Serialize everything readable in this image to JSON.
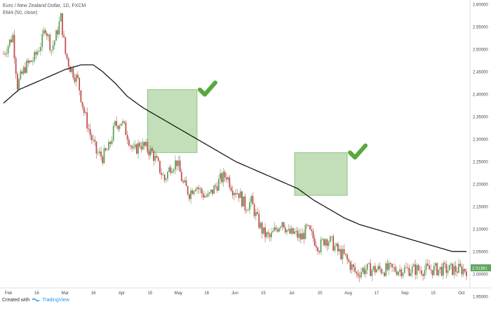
{
  "header": {
    "symbol_line": "Euro / New Zealand Dollar, 1D, FXCM",
    "indicator_line": "EMA (50, close)"
  },
  "footer": {
    "created_with": "Created with",
    "brand": "TradingView"
  },
  "colors": {
    "up_candle": "#5fa35f",
    "down_candle": "#c0504d",
    "ema_line": "#1a1a1a",
    "highlight_box": "#8fc47f",
    "checkmark": "#5aa83c",
    "price_label": "#5fa35f",
    "axis_text": "#444444",
    "grid": "#f2f2f2"
  },
  "icons": [
    "checkmark-icon",
    "tradingview-logo-icon"
  ],
  "chart_data": {
    "type": "candlestick",
    "title": "Euro / New Zealand Dollar, 1D, FXCM",
    "ylim": [
      1.98,
      2.6
    ],
    "y_ticks": [
      "2.60000",
      "2.55000",
      "2.50000",
      "2.45000",
      "2.40000",
      "2.35000",
      "2.30000",
      "2.25000",
      "2.20000",
      "2.15000",
      "2.10000",
      "2.05000",
      "2.00000",
      "1.95000"
    ],
    "x_labels": [
      "Feb",
      "16",
      "Mar",
      "16",
      "Apr",
      "15",
      "May",
      "16",
      "Jun",
      "15",
      "Jul",
      "20",
      "Aug",
      "17",
      "Sep",
      "15",
      "Oct"
    ],
    "last_price_label": "2.01381",
    "series": [
      {
        "name": "EMA (50, close)",
        "type": "line",
        "x": [
          0,
          10,
          20,
          30,
          40,
          50,
          58,
          64,
          72,
          80,
          90,
          100,
          110,
          120,
          130,
          140,
          150,
          160,
          170,
          180,
          190,
          200,
          210,
          220,
          230,
          240,
          250,
          260,
          270,
          280,
          290
        ],
        "values": [
          2.38,
          2.41,
          2.425,
          2.44,
          2.455,
          2.465,
          2.465,
          2.45,
          2.425,
          2.395,
          2.37,
          2.35,
          2.33,
          2.31,
          2.29,
          2.27,
          2.25,
          2.235,
          2.22,
          2.205,
          2.19,
          2.165,
          2.145,
          2.125,
          2.11,
          2.1,
          2.09,
          2.08,
          2.07,
          2.06,
          2.05
        ]
      },
      {
        "name": "candles",
        "type": "ohlc",
        "anchors_x": [
          0,
          6,
          9,
          14,
          20,
          25,
          27,
          31,
          34,
          37,
          40,
          43,
          48,
          52,
          56,
          60,
          64,
          68,
          72,
          76,
          80,
          84,
          88,
          92,
          96,
          100,
          104,
          108,
          112,
          116,
          120,
          124,
          128,
          132,
          136,
          140,
          144,
          148,
          152,
          156,
          160,
          164,
          168,
          172,
          176,
          180,
          184,
          188,
          192,
          196,
          200,
          204,
          208,
          212,
          216,
          220,
          224,
          228,
          232,
          236,
          240,
          244,
          248,
          252,
          256,
          260,
          264,
          268,
          272,
          276,
          280,
          284,
          288,
          292
        ],
        "anchors_close": [
          2.49,
          2.53,
          2.42,
          2.46,
          2.48,
          2.52,
          2.55,
          2.5,
          2.53,
          2.57,
          2.49,
          2.46,
          2.43,
          2.36,
          2.31,
          2.27,
          2.26,
          2.28,
          2.33,
          2.34,
          2.31,
          2.27,
          2.29,
          2.28,
          2.27,
          2.24,
          2.21,
          2.24,
          2.25,
          2.2,
          2.18,
          2.2,
          2.18,
          2.17,
          2.19,
          2.21,
          2.22,
          2.19,
          2.18,
          2.15,
          2.16,
          2.12,
          2.09,
          2.08,
          2.1,
          2.12,
          2.09,
          2.09,
          2.08,
          2.1,
          2.08,
          2.06,
          2.08,
          2.07,
          2.05,
          2.04,
          2.02,
          2.0,
          2.01,
          2.01,
          2.01,
          2.01,
          2.01,
          2.01,
          2.01,
          2.01,
          2.01,
          2.01,
          2.01,
          2.01,
          2.01,
          2.01,
          2.01,
          2.01
        ]
      }
    ],
    "annotations": [
      {
        "type": "box",
        "x_range": [
          93,
          125
        ],
        "y_range": [
          2.27,
          2.41
        ]
      },
      {
        "type": "box",
        "x_range": [
          188,
          222
        ],
        "y_range": [
          2.175,
          2.27
        ]
      },
      {
        "type": "checkmark"
      },
      {
        "type": "checkmark"
      }
    ]
  }
}
